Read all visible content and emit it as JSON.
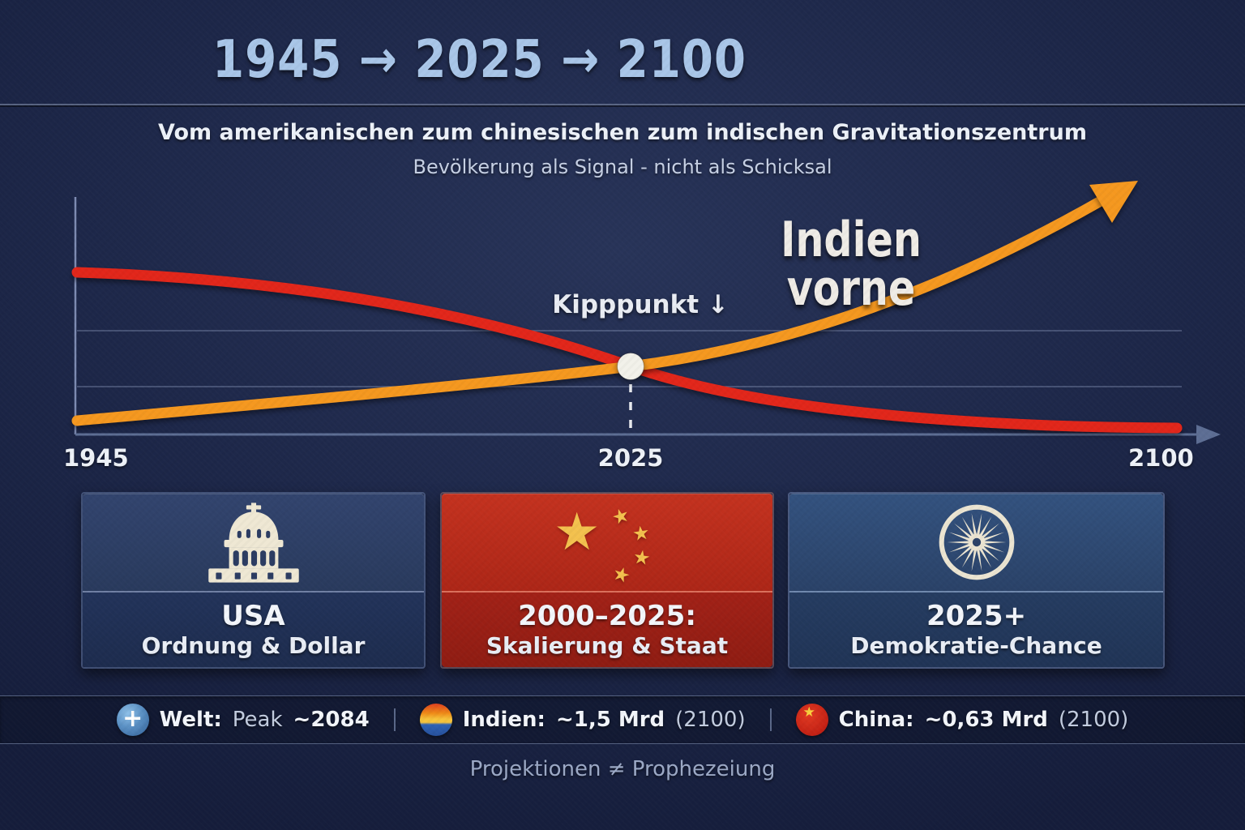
{
  "header": {
    "title": "1945 → 2025 → 2100",
    "subtitle": "Vom amerikanischen zum chinesischen zum indischen Gravitationszentrum",
    "tagline": "Bevölkerung als Signal - nicht als Schicksal"
  },
  "chart": {
    "winner_annotation": "Indien vorne",
    "tipping_point_label": "Kipppunkt ↓",
    "x_ticks": [
      "1945",
      "2025",
      "2100"
    ]
  },
  "chart_data": {
    "type": "line",
    "title": "1945 → 2025 → 2100",
    "subtitle": "Vom amerikanischen zum chinesischen zum indischen Gravitationszentrum",
    "xlabel": "",
    "ylabel": "",
    "x": [
      1945,
      1965,
      1985,
      2005,
      2025,
      2045,
      2065,
      2085,
      2100
    ],
    "x_ticks_shown": [
      "1945",
      "2025",
      "2100"
    ],
    "ylim": [
      0,
      1.1
    ],
    "grid": true,
    "legend_position": "bottom",
    "series": [
      {
        "name": "China",
        "color": "#e2261a",
        "values": [
          0.7,
          0.67,
          0.6,
          0.47,
          0.29,
          0.14,
          0.07,
          0.04,
          0.03
        ]
      },
      {
        "name": "Indien",
        "color": "#f5981f",
        "values": [
          0.06,
          0.1,
          0.15,
          0.21,
          0.29,
          0.45,
          0.65,
          0.9,
          1.05
        ]
      }
    ],
    "crossing_point": {
      "x": 2025,
      "label": "Kipppunkt"
    },
    "annotations": [
      "Kipppunkt ↓",
      "Indien vorne"
    ],
    "callouts": {
      "welt_peak": "~2084",
      "indien_2100": "~1,5 Mrd",
      "china_2100": "~0,63 Mrd"
    }
  },
  "cards": [
    {
      "icon": "capitol-icon",
      "title": "USA",
      "subtitle": "Ordnung & Dollar"
    },
    {
      "icon": "china-stars-icon",
      "title": "2000–2025:",
      "subtitle": "Skalierung & Staat"
    },
    {
      "icon": "ashoka-chakra-icon",
      "title": "2025+",
      "subtitle": "Demokratie-Chance"
    }
  ],
  "legend": {
    "items": [
      {
        "icon": "globe-plus-icon",
        "name": "Welt:",
        "mid": "Peak",
        "value": "~2084",
        "suffix": ""
      },
      {
        "icon": "india-sunrise-icon",
        "name": "Indien:",
        "mid": "",
        "value": "~1,5 Mrd",
        "suffix": "(2100)"
      },
      {
        "icon": "china-flag-icon",
        "name": "China:",
        "mid": "",
        "value": "~0,63 Mrd",
        "suffix": "(2100)"
      }
    ]
  },
  "footer": {
    "disclaimer": "Projektionen ≠ Prophezeiung"
  },
  "glyphs": {
    "star": "★",
    "plus": "+"
  },
  "colors": {
    "background": "#1d2749",
    "title_blue": "#a9c6e8",
    "china_line": "#e2261a",
    "india_line": "#f5981f",
    "china_card_red": "#b02518",
    "blue_card": "#2a3f66",
    "cream": "#efe8d4",
    "axis": "#5d6e94"
  }
}
